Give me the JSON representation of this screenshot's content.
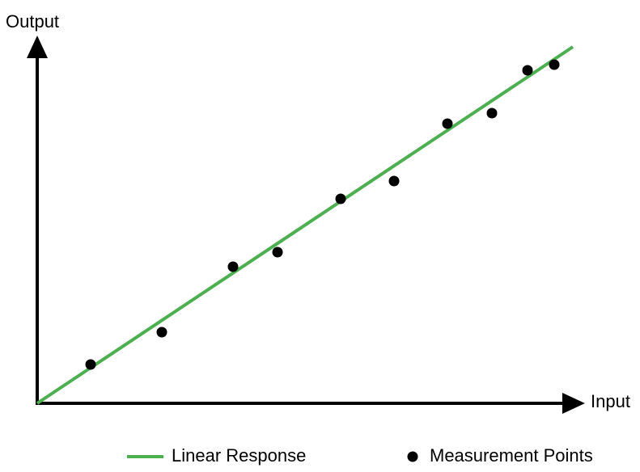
{
  "axes": {
    "y_label": "Output",
    "x_label": "Input"
  },
  "legend": {
    "line": "Linear Response",
    "points": "Measurement Points"
  }
}
